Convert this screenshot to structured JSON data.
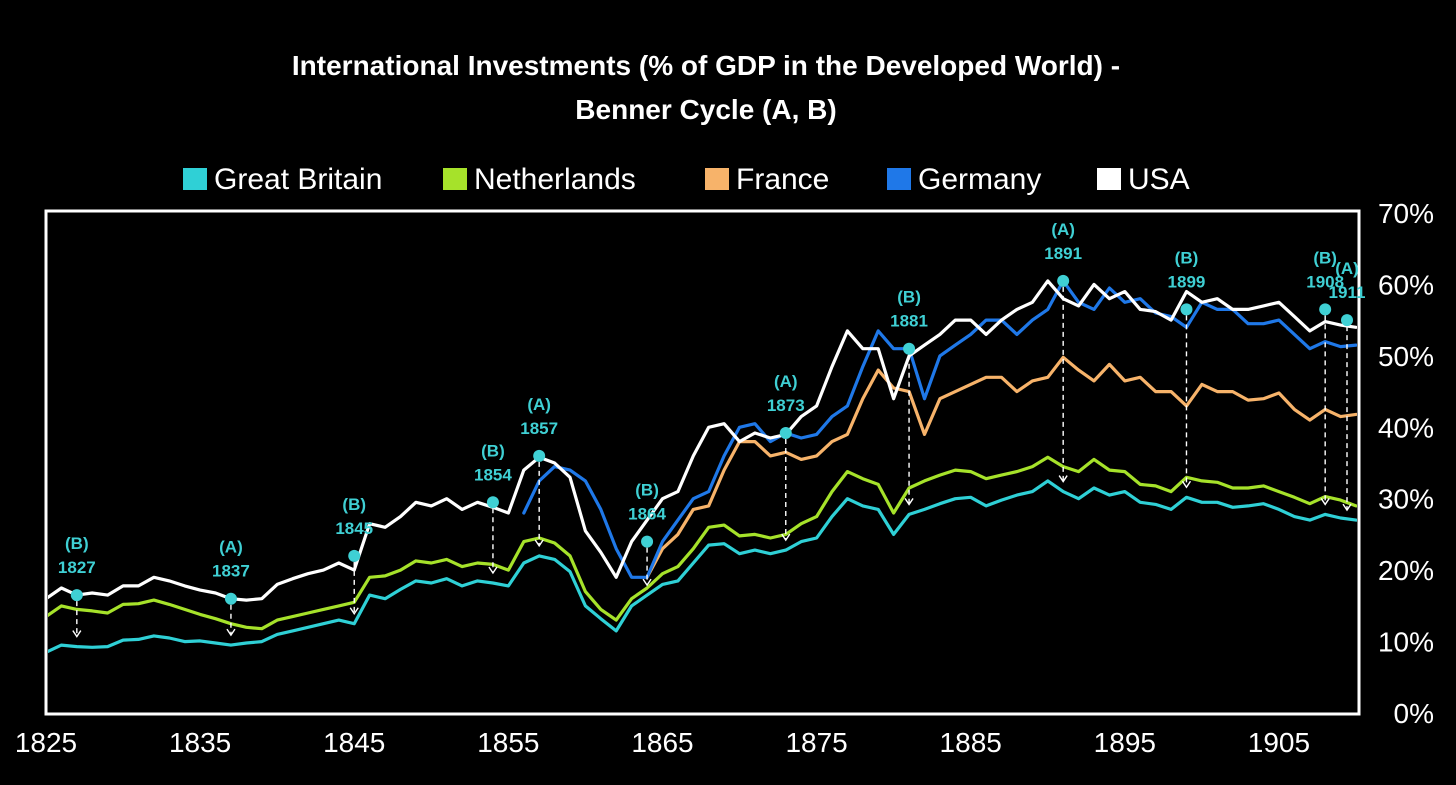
{
  "colors": {
    "background": "#000000",
    "great_britain": "#2fd0d6",
    "netherlands": "#a6e22a",
    "france": "#f7b36a",
    "germany": "#1f78e8",
    "usa": "#ffffff",
    "annotation": "#3fd0d4"
  },
  "chart_data": {
    "type": "line",
    "title_lines": [
      "International Investments (% of GDP in the Developed World) -",
      "Benner Cycle (A, B)"
    ],
    "xlim": [
      1825,
      1910
    ],
    "x_ticks": [
      1825,
      1835,
      1845,
      1855,
      1865,
      1875,
      1885,
      1895,
      1905
    ],
    "ylim": [
      0,
      70
    ],
    "y_ticks": [
      0,
      10,
      20,
      30,
      40,
      50,
      60,
      70
    ],
    "y_tick_suffix": "%",
    "y_axis_position": "right",
    "grid": false,
    "legend_position": "top",
    "series": [
      {
        "name": "Great Britain",
        "color": "#2fd0d6",
        "x": [
          1825,
          1826,
          1827,
          1828,
          1829,
          1830,
          1831,
          1832,
          1833,
          1834,
          1835,
          1836,
          1837,
          1838,
          1839,
          1840,
          1841,
          1842,
          1843,
          1844,
          1845,
          1846,
          1847,
          1848,
          1849,
          1850,
          1851,
          1852,
          1853,
          1854,
          1855,
          1856,
          1857,
          1858,
          1859,
          1860,
          1861,
          1862,
          1863,
          1864,
          1865,
          1866,
          1867,
          1868,
          1869,
          1870,
          1871,
          1872,
          1873,
          1874,
          1875,
          1876,
          1877,
          1878,
          1879,
          1880,
          1881,
          1882,
          1883,
          1884,
          1885,
          1886,
          1887,
          1888,
          1889,
          1890,
          1891,
          1892,
          1893,
          1894,
          1895,
          1896,
          1897,
          1898,
          1899,
          1900,
          1901,
          1902,
          1903,
          1904,
          1905,
          1906,
          1907,
          1908,
          1909,
          1910
        ],
        "values": [
          8.5,
          9.5,
          9.3,
          9.2,
          9.3,
          10.2,
          10.3,
          10.8,
          10.5,
          10.0,
          10.1,
          9.8,
          9.5,
          9.8,
          10.0,
          11.0,
          11.5,
          12.0,
          12.5,
          13.0,
          12.5,
          16.5,
          16.0,
          17.3,
          18.5,
          18.2,
          18.8,
          17.8,
          18.5,
          18.2,
          17.8,
          21.0,
          22.0,
          21.5,
          19.8,
          15.0,
          13.2,
          11.5,
          15.0,
          16.5,
          18.0,
          18.5,
          21.0,
          23.5,
          23.7,
          22.3,
          22.8,
          22.3,
          22.8,
          24.0,
          24.5,
          27.5,
          30.0,
          29.0,
          28.5,
          25.0,
          27.8,
          28.5,
          29.3,
          30.0,
          30.2,
          29.0,
          29.8,
          30.5,
          31.0,
          32.5,
          31.0,
          30.0,
          31.5,
          30.5,
          31.0,
          29.5,
          29.2,
          28.5,
          30.2,
          29.5,
          29.5,
          28.8,
          29.0,
          29.3,
          28.5,
          27.5,
          27.0,
          27.8,
          27.3,
          27.0
        ]
      },
      {
        "name": "Netherlands",
        "color": "#a6e22a",
        "x": [
          1825,
          1826,
          1827,
          1828,
          1829,
          1830,
          1831,
          1832,
          1833,
          1834,
          1835,
          1836,
          1837,
          1838,
          1839,
          1840,
          1841,
          1842,
          1843,
          1844,
          1845,
          1846,
          1847,
          1848,
          1849,
          1850,
          1851,
          1852,
          1853,
          1854,
          1855,
          1856,
          1857,
          1858,
          1859,
          1860,
          1861,
          1862,
          1863,
          1864,
          1865,
          1866,
          1867,
          1868,
          1869,
          1870,
          1871,
          1872,
          1873,
          1874,
          1875,
          1876,
          1877,
          1878,
          1879,
          1880,
          1881,
          1882,
          1883,
          1884,
          1885,
          1886,
          1887,
          1888,
          1889,
          1890,
          1891,
          1892,
          1893,
          1894,
          1895,
          1896,
          1897,
          1898,
          1899,
          1900,
          1901,
          1902,
          1903,
          1904,
          1905,
          1906,
          1907,
          1908,
          1909,
          1910
        ],
        "values": [
          13.5,
          15.0,
          14.5,
          14.3,
          14.0,
          15.2,
          15.3,
          15.8,
          15.2,
          14.5,
          13.8,
          13.2,
          12.5,
          12.0,
          11.8,
          13.0,
          13.5,
          14.0,
          14.5,
          15.0,
          15.5,
          19.0,
          19.2,
          20.0,
          21.3,
          21.0,
          21.5,
          20.5,
          21.0,
          20.8,
          20.0,
          24.0,
          24.5,
          23.8,
          22.0,
          17.0,
          14.5,
          13.0,
          16.0,
          17.5,
          19.5,
          20.5,
          23.0,
          26.0,
          26.3,
          24.8,
          25.0,
          24.5,
          25.0,
          26.5,
          27.5,
          31.0,
          33.8,
          32.8,
          32.0,
          28.0,
          31.5,
          32.5,
          33.3,
          34.0,
          33.8,
          32.8,
          33.3,
          33.8,
          34.5,
          35.8,
          34.5,
          33.8,
          35.5,
          34.0,
          33.8,
          32.0,
          31.8,
          31.0,
          33.0,
          32.5,
          32.3,
          31.5,
          31.5,
          31.8,
          31.0,
          30.2,
          29.3,
          30.3,
          29.8,
          29.0
        ]
      },
      {
        "name": "France",
        "color": "#f7b36a",
        "x": [
          1864,
          1865,
          1866,
          1867,
          1868,
          1869,
          1870,
          1871,
          1872,
          1873,
          1874,
          1875,
          1876,
          1877,
          1878,
          1879,
          1880,
          1881,
          1882,
          1883,
          1884,
          1885,
          1886,
          1887,
          1888,
          1889,
          1890,
          1891,
          1892,
          1893,
          1894,
          1895,
          1896,
          1897,
          1898,
          1899,
          1900,
          1901,
          1902,
          1903,
          1904,
          1905,
          1906,
          1907,
          1908,
          1909,
          1910
        ],
        "values": [
          19.0,
          23.0,
          25.0,
          28.5,
          29.0,
          34.0,
          38.0,
          38.0,
          36.0,
          36.5,
          35.5,
          36.0,
          38.0,
          39.0,
          44.0,
          48.0,
          45.5,
          45.0,
          39.0,
          44.0,
          45.0,
          46.0,
          47.0,
          47.0,
          45.0,
          46.5,
          47.0,
          49.8,
          48.0,
          46.5,
          48.8,
          46.5,
          47.0,
          45.0,
          45.0,
          43.0,
          46.0,
          45.0,
          45.0,
          43.8,
          44.0,
          44.8,
          42.5,
          41.0,
          42.5,
          41.5,
          41.8
        ]
      },
      {
        "name": "Germany",
        "color": "#1f78e8",
        "x": [
          1856,
          1857,
          1858,
          1859,
          1860,
          1861,
          1862,
          1863,
          1864,
          1865,
          1866,
          1867,
          1868,
          1869,
          1870,
          1871,
          1872,
          1873,
          1874,
          1875,
          1876,
          1877,
          1878,
          1879,
          1880,
          1881,
          1882,
          1883,
          1884,
          1885,
          1886,
          1887,
          1888,
          1889,
          1890,
          1891,
          1892,
          1893,
          1894,
          1895,
          1896,
          1897,
          1898,
          1899,
          1900,
          1901,
          1902,
          1903,
          1904,
          1905,
          1906,
          1907,
          1908,
          1909,
          1910
        ],
        "values": [
          28.0,
          32.5,
          34.5,
          34.0,
          32.5,
          28.5,
          23.0,
          19.0,
          19.0,
          24.0,
          27.0,
          30.0,
          31.0,
          36.0,
          40.0,
          40.5,
          38.0,
          39.2,
          38.5,
          39.0,
          41.5,
          43.0,
          48.5,
          53.5,
          51.0,
          51.0,
          44.0,
          50.0,
          51.5,
          53.0,
          55.0,
          55.0,
          53.0,
          55.0,
          56.5,
          60.5,
          57.5,
          56.5,
          59.5,
          57.5,
          58.0,
          56.0,
          55.5,
          54.0,
          57.5,
          56.5,
          56.5,
          54.5,
          54.5,
          55.0,
          53.0,
          51.0,
          52.0,
          51.3,
          51.5
        ]
      },
      {
        "name": "USA",
        "color": "#ffffff",
        "x": [
          1825,
          1826,
          1827,
          1828,
          1829,
          1830,
          1831,
          1832,
          1833,
          1834,
          1835,
          1836,
          1837,
          1838,
          1839,
          1840,
          1841,
          1842,
          1843,
          1844,
          1845,
          1846,
          1847,
          1848,
          1849,
          1850,
          1851,
          1852,
          1853,
          1854,
          1855,
          1856,
          1857,
          1858,
          1859,
          1860,
          1861,
          1862,
          1863,
          1864,
          1865,
          1866,
          1867,
          1868,
          1869,
          1870,
          1871,
          1872,
          1873,
          1874,
          1875,
          1876,
          1877,
          1878,
          1879,
          1880,
          1881,
          1882,
          1883,
          1884,
          1885,
          1886,
          1887,
          1888,
          1889,
          1890,
          1891,
          1892,
          1893,
          1894,
          1895,
          1896,
          1897,
          1898,
          1899,
          1900,
          1901,
          1902,
          1903,
          1904,
          1905,
          1906,
          1907,
          1908,
          1909,
          1910
        ],
        "values": [
          16.0,
          17.5,
          16.5,
          16.8,
          16.5,
          17.8,
          17.8,
          19.0,
          18.5,
          17.8,
          17.2,
          16.8,
          16.0,
          15.8,
          16.0,
          18.0,
          18.8,
          19.5,
          20.0,
          21.0,
          20.0,
          26.5,
          26.0,
          27.5,
          29.5,
          29.0,
          30.0,
          28.5,
          29.5,
          28.8,
          28.0,
          34.0,
          35.8,
          35.0,
          33.0,
          25.5,
          22.5,
          19.0,
          24.0,
          27.0,
          30.0,
          31.0,
          36.0,
          40.0,
          40.5,
          38.0,
          39.2,
          38.5,
          39.0,
          41.5,
          43.0,
          48.5,
          53.5,
          51.0,
          51.0,
          44.0,
          50.0,
          51.5,
          53.0,
          55.0,
          55.0,
          53.0,
          55.0,
          56.5,
          57.5,
          60.5,
          58.0,
          57.0,
          60.0,
          58.0,
          59.0,
          56.5,
          56.2,
          55.0,
          59.0,
          57.5,
          58.0,
          56.5,
          56.5,
          57.0,
          57.5,
          55.5,
          53.5,
          54.8,
          54.3,
          54.0
        ]
      }
    ],
    "annotations": [
      {
        "letter": "(B)",
        "year_label": "1827",
        "x": 1827,
        "y": 16.5
      },
      {
        "letter": "(A)",
        "year_label": "1837",
        "x": 1837,
        "y": 16.0
      },
      {
        "letter": "(B)",
        "year_label": "1845",
        "x": 1845,
        "y": 22.0
      },
      {
        "letter": "(B)",
        "year_label": "1854",
        "x": 1854,
        "y": 29.5
      },
      {
        "letter": "(A)",
        "year_label": "1857",
        "x": 1857,
        "y": 36.0
      },
      {
        "letter": "(B)",
        "year_label": "1864",
        "x": 1864,
        "y": 24.0
      },
      {
        "letter": "(A)",
        "year_label": "1873",
        "x": 1873,
        "y": 39.2
      },
      {
        "letter": "(B)",
        "year_label": "1881",
        "x": 1881,
        "y": 51.0
      },
      {
        "letter": "(A)",
        "year_label": "1891",
        "x": 1891,
        "y": 60.5
      },
      {
        "letter": "(B)",
        "year_label": "1899",
        "x": 1899,
        "y": 56.5
      },
      {
        "letter": "(B)",
        "year_label": "1908",
        "x": 1908,
        "y": 56.5
      },
      {
        "letter": "(A)",
        "year_label": "1911",
        "x": 1911,
        "y": 55.0
      }
    ]
  }
}
